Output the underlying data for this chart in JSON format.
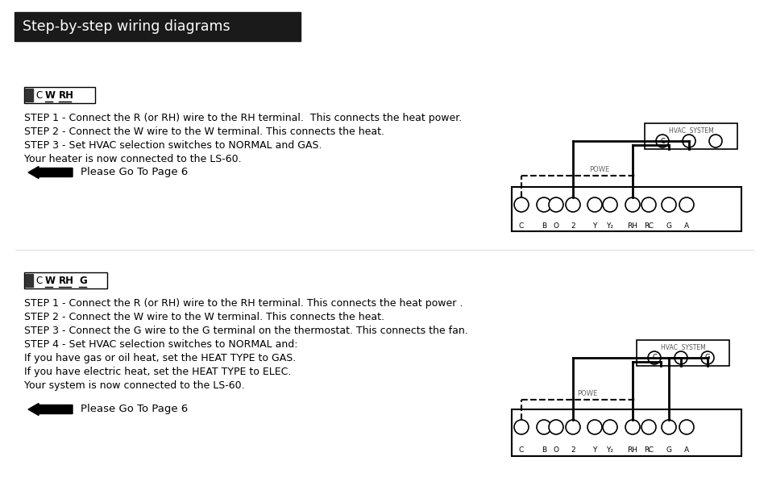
{
  "title": "Step-by-step wiring diagrams",
  "title_bg": "#1a1a1a",
  "title_fg": "#ffffff",
  "bg_color": "#ffffff",
  "section1_steps": [
    "STEP 1 - Connect the R (or RH) wire to the RH terminal.  This connects the heat power.",
    "STEP 2 - Connect the W wire to the W terminal. This connects the heat.",
    "STEP 3 - Set HVAC selection switches to NORMAL and GAS.",
    "Your heater is now connected to the LS-60."
  ],
  "section1_goto": "Please Go To Page 6",
  "section2_steps": [
    "STEP 1 - Connect the R (or RH) wire to the RH terminal. This connects the heat power .",
    "STEP 2 - Connect the W wire to the W terminal. This connects the heat.",
    "STEP 3 - Connect the G wire to the G terminal on the thermostat. This connects the fan.",
    "STEP 4 - Set HVAC selection switches to NORMAL and:",
    "If you have gas or oil heat, set the HEAT TYPE to GAS.",
    "If you have electric heat, set the HEAT TYPE to ELEC.",
    "Your system is now connected to the LS-60."
  ],
  "section2_goto": "Please Go To Page 6",
  "terminal_labels": [
    "C",
    "B",
    "O",
    "2",
    "Y",
    "Y₂",
    "RH",
    "RC",
    "G",
    "A"
  ],
  "hvac_label": "HVAC  SYSTEM",
  "powe_label": "POWE"
}
